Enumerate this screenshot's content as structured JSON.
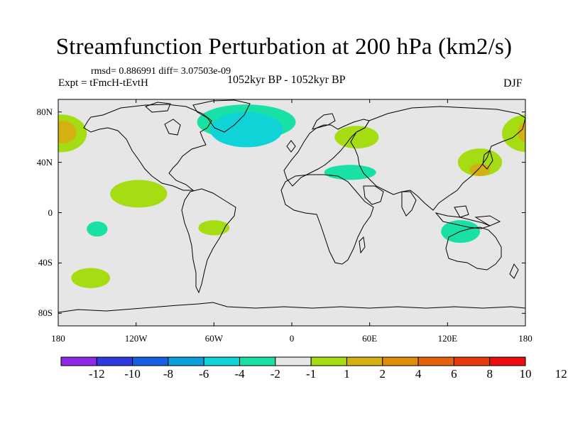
{
  "title": "Streamfunction Perturbation at 200 hPa (km2/s)",
  "stats": "rmsd= 0.886991 diff= 3.07503e-09",
  "experiment": "Expt = tFmcH-tEvtH",
  "period": "1052kyr BP - 1052kyr BP",
  "season": "DJF",
  "map": {
    "projection": "cylindrical-equidistant",
    "lon_range": [
      -180,
      180
    ],
    "lat_range": [
      -90,
      90
    ],
    "background_color": "#e6e6e6",
    "lat_ticks": [
      {
        "value": 80,
        "label": "80N"
      },
      {
        "value": 40,
        "label": "40N"
      },
      {
        "value": 0,
        "label": "0"
      },
      {
        "value": -40,
        "label": "40S"
      },
      {
        "value": -80,
        "label": "80S"
      }
    ],
    "lon_ticks": [
      {
        "value": -180,
        "label": "180"
      },
      {
        "value": -120,
        "label": "120W"
      },
      {
        "value": -60,
        "label": "60W"
      },
      {
        "value": 0,
        "label": "0"
      },
      {
        "value": 60,
        "label": "60E"
      },
      {
        "value": 120,
        "label": "120E"
      },
      {
        "value": 180,
        "label": "180"
      }
    ],
    "contour_regions": [
      {
        "name": "north-pacific-positive-west",
        "level": 2,
        "lon": -178,
        "lat": 63,
        "rlon": 20,
        "rlat": 15,
        "color": "#a5dc12"
      },
      {
        "name": "north-pacific-positive-west-core",
        "level": 4,
        "lon": -176,
        "lat": 64,
        "rlon": 10,
        "rlat": 9,
        "color": "#d4b112"
      },
      {
        "name": "greenland-negative",
        "level": -2,
        "lon": -35,
        "lat": 72,
        "rlon": 38,
        "rlat": 14,
        "color": "#19e1a5"
      },
      {
        "name": "greenland-negative-core",
        "level": -4,
        "lon": -35,
        "lat": 66,
        "rlon": 28,
        "rlat": 14,
        "color": "#10d3d7"
      },
      {
        "name": "europe-positive",
        "level": 2,
        "lon": 50,
        "lat": 60,
        "rlon": 17,
        "rlat": 9,
        "color": "#a5dc12"
      },
      {
        "name": "east-pacific-positive",
        "level": 2,
        "lon": -118,
        "lat": 15,
        "rlon": 22,
        "rlat": 11,
        "color": "#a5dc12"
      },
      {
        "name": "north-africa-negative",
        "level": -2,
        "lon": 45,
        "lat": 32,
        "rlon": 20,
        "rlat": 6,
        "color": "#19e1a5"
      },
      {
        "name": "japan-positive",
        "level": 2,
        "lon": 145,
        "lat": 40,
        "rlon": 17,
        "rlat": 11,
        "color": "#a5dc12"
      },
      {
        "name": "japan-positive-core",
        "level": 4,
        "lon": 145,
        "lat": 34,
        "rlon": 8,
        "rlat": 5,
        "color": "#d4b112"
      },
      {
        "name": "maritime-continent-negative",
        "level": -2,
        "lon": 130,
        "lat": -15,
        "rlon": 15,
        "rlat": 9,
        "color": "#19e1a5"
      },
      {
        "name": "south-atlantic-positive",
        "level": 2,
        "lon": -60,
        "lat": -12,
        "rlon": 12,
        "rlat": 6,
        "color": "#a5dc12"
      },
      {
        "name": "south-pacific-positive",
        "level": 2,
        "lon": -155,
        "lat": -52,
        "rlon": 15,
        "rlat": 8,
        "color": "#a5dc12"
      },
      {
        "name": "central-pacific-negative",
        "level": -2,
        "lon": -150,
        "lat": -13,
        "rlon": 8,
        "rlat": 6,
        "color": "#19e1a5"
      }
    ]
  },
  "colorbar": {
    "colors": [
      "#8e2ae6",
      "#2e3adf",
      "#1460e0",
      "#0d9fdc",
      "#10d3d7",
      "#19e1a5",
      "#e6e6e6",
      "#a5dc12",
      "#d4b112",
      "#e28d0a",
      "#e3620b",
      "#e63a0a",
      "#ea0e0e"
    ],
    "labels": [
      "-12",
      "-10",
      "-8",
      "-6",
      "-4",
      "-2",
      "-1",
      "1",
      "2",
      "4",
      "6",
      "8",
      "10",
      "12"
    ]
  }
}
